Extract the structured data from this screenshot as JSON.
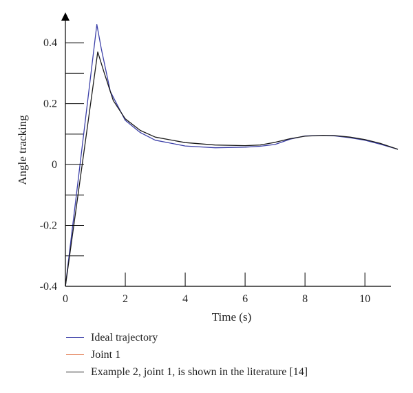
{
  "chart_data": {
    "type": "line",
    "xlabel": "Time (s)",
    "ylabel": "Angle tracking",
    "xlim": [
      0,
      11.1
    ],
    "ylim": [
      -0.4,
      0.45
    ],
    "x_ticks": [
      0,
      2,
      4,
      6,
      8,
      10
    ],
    "x_tick_labels": [
      "0",
      "2",
      "4",
      "6",
      "8",
      "10"
    ],
    "y_ticks": [
      0.4,
      0.2,
      0,
      -0.2,
      -0.4
    ],
    "y_tick_labels": [
      "0.4",
      "0.2",
      "0",
      "-0.2",
      "-0.4"
    ],
    "y_minor_ticks": [
      0.3,
      0.1,
      -0.1,
      -0.3
    ],
    "legend_position": "bottom-left",
    "series": [
      {
        "name": "Ideal trajectory",
        "color": "#3b3fa8",
        "x": [
          0,
          1.05,
          1.2,
          1.5,
          2.0,
          2.5,
          3.0,
          4.0,
          5.0,
          6.0,
          6.5,
          7.0,
          7.5,
          8.0,
          8.6,
          9.0,
          9.5,
          10.0,
          10.5,
          11.1
        ],
        "y": [
          -0.4,
          0.46,
          0.38,
          0.24,
          0.145,
          0.105,
          0.08,
          0.061,
          0.055,
          0.057,
          0.06,
          0.066,
          0.083,
          0.094,
          0.096,
          0.094,
          0.088,
          0.08,
          0.067,
          0.05
        ]
      },
      {
        "name": "Joint 1",
        "color": "#d9541e",
        "x": [],
        "y": []
      },
      {
        "name": "Example 2, joint 1, is shown in the literature [14]",
        "color": "#1a1a1a",
        "x": [
          0,
          1.08,
          1.3,
          1.6,
          2.0,
          2.5,
          3.0,
          4.0,
          5.0,
          6.0,
          6.5,
          7.0,
          7.5,
          8.0,
          8.6,
          9.0,
          9.5,
          10.0,
          10.5,
          11.1
        ],
        "y": [
          -0.4,
          0.37,
          0.3,
          0.21,
          0.15,
          0.112,
          0.09,
          0.072,
          0.064,
          0.062,
          0.064,
          0.073,
          0.085,
          0.093,
          0.096,
          0.095,
          0.09,
          0.082,
          0.07,
          0.05
        ]
      }
    ]
  }
}
